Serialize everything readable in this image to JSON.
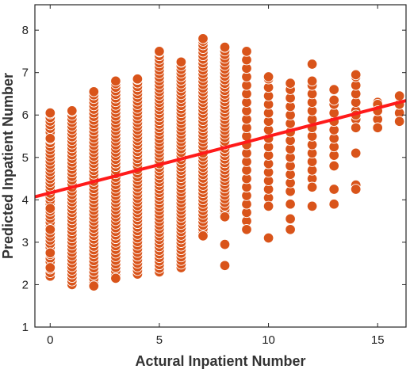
{
  "chart_data": {
    "type": "scatter",
    "title": "",
    "xlabel": "Actural Inpatient Number",
    "ylabel": "Predicted Inpatient Number",
    "xlim": [
      -0.7,
      16.3
    ],
    "ylim": [
      1,
      8.6
    ],
    "xticks": [
      0,
      5,
      10,
      15
    ],
    "yticks": [
      1,
      2,
      3,
      4,
      5,
      6,
      7,
      8
    ],
    "grid": false,
    "marker_color": "#d9541a",
    "marker_edge_color": "#ffffff",
    "fit_line_color": "#ff1a1a",
    "fit_line": {
      "x": [
        -0.7,
        16.3
      ],
      "y": [
        4.07,
        6.34
      ]
    },
    "columns": [
      {
        "x": 0,
        "y_min": 2.2,
        "y_max": 6.05
      },
      {
        "x": 1,
        "y_min": 2.0,
        "y_max": 6.1
      },
      {
        "x": 2,
        "y_min": 1.97,
        "y_max": 6.55
      },
      {
        "x": 3,
        "y_min": 2.15,
        "y_max": 6.8
      },
      {
        "x": 4,
        "y_min": 2.25,
        "y_max": 6.85
      },
      {
        "x": 5,
        "y_min": 2.3,
        "y_max": 7.5
      },
      {
        "x": 6,
        "y_min": 2.4,
        "y_max": 7.25
      },
      {
        "x": 7,
        "y_min": 3.15,
        "y_max": 7.8
      },
      {
        "x": 8,
        "y_min": 3.6,
        "y_max": 7.6
      },
      {
        "x": 9,
        "y_min": 3.3,
        "y_max": 7.5
      },
      {
        "x": 10,
        "y_min": 3.85,
        "y_max": 6.9
      },
      {
        "x": 11,
        "y_min": 4.2,
        "y_max": 6.75
      },
      {
        "x": 12,
        "y_min": 4.3,
        "y_max": 6.8
      },
      {
        "x": 13,
        "y_min": 5.05,
        "y_max": 6.35
      },
      {
        "x": 14,
        "y_min": 5.7,
        "y_max": 6.95
      },
      {
        "x": 15,
        "y_min": 5.7,
        "y_max": 6.3
      },
      {
        "x": 16,
        "y_min": 5.85,
        "y_max": 6.45
      }
    ],
    "points": [
      {
        "x": 0,
        "y": 5.45
      },
      {
        "x": 0,
        "y": 3.8
      },
      {
        "x": 0,
        "y": 3.3
      },
      {
        "x": 0,
        "y": 2.75
      },
      {
        "x": 0,
        "y": 2.4
      },
      {
        "x": 2,
        "y": 1.97
      },
      {
        "x": 3,
        "y": 2.15
      },
      {
        "x": 7,
        "y": 7.8
      },
      {
        "x": 7,
        "y": 3.15
      },
      {
        "x": 8,
        "y": 2.95
      },
      {
        "x": 8,
        "y": 2.45
      },
      {
        "x": 8,
        "y": 3.6
      },
      {
        "x": 9,
        "y": 3.3
      },
      {
        "x": 10,
        "y": 3.85
      },
      {
        "x": 10,
        "y": 3.1
      },
      {
        "x": 10,
        "y": 6.9
      },
      {
        "x": 11,
        "y": 3.9
      },
      {
        "x": 11,
        "y": 3.55
      },
      {
        "x": 11,
        "y": 3.3
      },
      {
        "x": 12,
        "y": 4.3
      },
      {
        "x": 12,
        "y": 3.85
      },
      {
        "x": 12,
        "y": 7.2
      },
      {
        "x": 13,
        "y": 4.8
      },
      {
        "x": 13,
        "y": 4.25
      },
      {
        "x": 13,
        "y": 3.9
      },
      {
        "x": 13,
        "y": 6.6
      },
      {
        "x": 14,
        "y": 6.95
      },
      {
        "x": 14,
        "y": 6.0
      },
      {
        "x": 14,
        "y": 5.7
      },
      {
        "x": 14,
        "y": 5.1
      },
      {
        "x": 14,
        "y": 4.35
      },
      {
        "x": 14,
        "y": 4.25
      },
      {
        "x": 15,
        "y": 6.25
      },
      {
        "x": 15,
        "y": 6.1
      },
      {
        "x": 15,
        "y": 5.7
      },
      {
        "x": 16,
        "y": 6.45
      },
      {
        "x": 16,
        "y": 5.85
      }
    ]
  }
}
